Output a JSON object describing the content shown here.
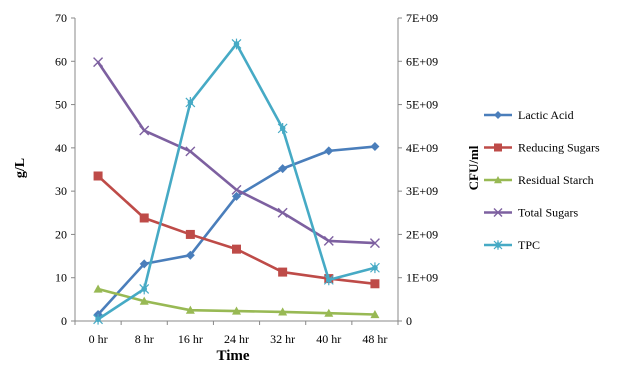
{
  "chart_data": {
    "type": "line",
    "categories": [
      "0 hr",
      "8 hr",
      "16 hr",
      "24 hr",
      "32 hr",
      "40 hr",
      "48 hr"
    ],
    "xlabel": "Time",
    "ylabel": "g/L",
    "y2label": "CFU/ml",
    "ylim": [
      0,
      70
    ],
    "yticks": [
      0,
      10,
      20,
      30,
      40,
      50,
      60,
      70
    ],
    "y2lim": [
      0,
      7000000000
    ],
    "y2ticks": [
      "0",
      "1E+09",
      "2E+09",
      "3E+09",
      "4E+09",
      "5E+09",
      "6E+09",
      "7E+09"
    ],
    "grid": false,
    "legend": "right",
    "series": [
      {
        "name": "Lactic Acid",
        "axis": "left",
        "color": "#4a7ebb",
        "marker": "diamond",
        "values": [
          1.5,
          13.2,
          15.2,
          28.8,
          35.2,
          39.3,
          40.3
        ]
      },
      {
        "name": "Reducing Sugars",
        "axis": "left",
        "color": "#be4b48",
        "marker": "square",
        "values": [
          33.5,
          23.8,
          20.0,
          16.6,
          11.3,
          9.8,
          8.6
        ]
      },
      {
        "name": "Residual Starch",
        "axis": "left",
        "color": "#98b954",
        "marker": "triangle",
        "values": [
          7.4,
          4.6,
          2.5,
          2.3,
          2.1,
          1.8,
          1.5
        ]
      },
      {
        "name": "Total Sugars",
        "axis": "left",
        "color": "#7d60a0",
        "marker": "x",
        "values": [
          59.8,
          44.0,
          39.2,
          30.3,
          25.0,
          18.5,
          18.0
        ]
      },
      {
        "name": "TPC",
        "axis": "right",
        "color": "#46aac5",
        "marker": "star",
        "values": [
          40000000,
          740000000,
          5050000000,
          6400000000,
          4450000000,
          950000000,
          1230000000
        ]
      }
    ]
  }
}
